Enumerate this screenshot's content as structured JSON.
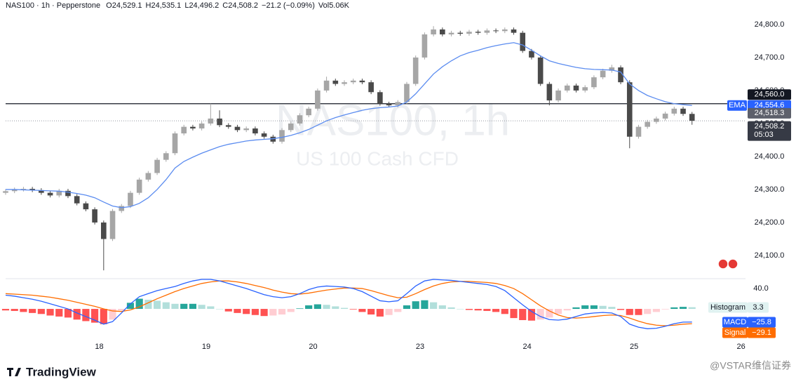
{
  "chart_data": {
    "type": "candlestick",
    "header": {
      "symbol": "NAS100 · 1h · Pepperstone",
      "fields": [
        {
          "label": "O",
          "value": "24,529.1"
        },
        {
          "label": "H",
          "value": "24,535.1"
        },
        {
          "label": "L",
          "value": "24,496.2"
        },
        {
          "label": "C",
          "value": "24,508.2"
        },
        {
          "label": "",
          "value": "−21.2 (−0.09%)"
        },
        {
          "label": "Vol",
          "value": "5.06K"
        }
      ]
    },
    "watermark": {
      "title": "NAS100, 1h",
      "subtitle": "US 100 Cash CFD"
    },
    "brand": "TradingView",
    "credit": "@VSTAR维信证券",
    "xlim": [
      0,
      166
    ],
    "xticks": [
      {
        "value": 21,
        "label": "18"
      },
      {
        "value": 45,
        "label": "19"
      },
      {
        "value": 69,
        "label": "20"
      },
      {
        "value": 93,
        "label": "23"
      },
      {
        "value": 117,
        "label": "24"
      },
      {
        "value": 141,
        "label": "25"
      },
      {
        "value": 165,
        "label": "26"
      }
    ],
    "ylim": [
      24034,
      24853
    ],
    "yticks": [
      {
        "value": 24800,
        "label": "24,800.0"
      },
      {
        "value": 24700,
        "label": "24,700.0"
      },
      {
        "value": 24600,
        "label": "24,600.0"
      },
      {
        "value": 24500,
        "label": "24,500.0"
      },
      {
        "value": 24400,
        "label": "24,400.0"
      },
      {
        "value": 24300,
        "label": "24,300.0"
      },
      {
        "value": 24200,
        "label": "24,200.0"
      },
      {
        "value": 24100,
        "label": "24,100.0"
      }
    ],
    "up_color": "#a6a6a6",
    "down_color": "#4a4a4a",
    "x": [
      0,
      2,
      4,
      6,
      8,
      10,
      12,
      14,
      16,
      18,
      20,
      22,
      24,
      26,
      28,
      30,
      32,
      34,
      36,
      38,
      40,
      42,
      44,
      46,
      48,
      50,
      52,
      54,
      56,
      58,
      60,
      62,
      64,
      66,
      68,
      70,
      72,
      74,
      76,
      78,
      80,
      82,
      84,
      86,
      88,
      90,
      92,
      94,
      96,
      98,
      100,
      102,
      104,
      106,
      108,
      110,
      112,
      114,
      116,
      118,
      120,
      122,
      124,
      126,
      128,
      130,
      132,
      134,
      136,
      138,
      140,
      142,
      144,
      146,
      148,
      150,
      152,
      154
    ],
    "open": [
      24290,
      24295,
      24300,
      24302,
      24298,
      24290,
      24282,
      24296,
      24280,
      24258,
      24240,
      24200,
      24150,
      24235,
      24250,
      24290,
      24330,
      24350,
      24390,
      24410,
      24470,
      24490,
      24485,
      24500,
      24515,
      24495,
      24490,
      24480,
      24485,
      24470,
      24460,
      24445,
      24480,
      24500,
      24525,
      24545,
      24600,
      24630,
      24620,
      24625,
      24630,
      24625,
      24595,
      24560,
      24555,
      24565,
      24620,
      24700,
      24770,
      24785,
      24770,
      24775,
      24772,
      24778,
      24775,
      24782,
      24780,
      24785,
      24775,
      24720,
      24700,
      24620,
      24570,
      24600,
      24615,
      24600,
      24610,
      24640,
      24660,
      24670,
      24625,
      24460,
      24490,
      24505,
      24515,
      24530,
      24545,
      24529.1
    ],
    "high": [
      24301,
      24306,
      24308,
      24308,
      24304,
      24296,
      24302,
      24302,
      24286,
      24264,
      24246,
      24206,
      24241,
      24256,
      24296,
      24336,
      24356,
      24396,
      24416,
      24476,
      24496,
      24496,
      24506,
      24560,
      24540,
      24501,
      24496,
      24491,
      24491,
      24476,
      24466,
      24486,
      24506,
      24531,
      24551,
      24606,
      24642,
      24636,
      24631,
      24636,
      24636,
      24631,
      24601,
      24566,
      24571,
      24626,
      24706,
      24776,
      24795,
      24791,
      24781,
      24781,
      24784,
      24784,
      24788,
      24788,
      24791,
      24791,
      24781,
      24726,
      24706,
      24626,
      24606,
      24621,
      24621,
      24616,
      24646,
      24666,
      24678,
      24676,
      24631,
      24496,
      24511,
      24521,
      24536,
      24551,
      24551,
      24535.1
    ],
    "low": [
      24284,
      24289,
      24294,
      24292,
      24284,
      24276,
      24276,
      24274,
      24252,
      24234,
      24194,
      24055,
      24144,
      24229,
      24244,
      24284,
      24324,
      24344,
      24384,
      24404,
      24464,
      24479,
      24479,
      24494,
      24489,
      24484,
      24474,
      24474,
      24464,
      24454,
      24439,
      24439,
      24474,
      24494,
      24519,
      24539,
      24594,
      24614,
      24614,
      24619,
      24619,
      24589,
      24554,
      24549,
      24549,
      24559,
      24614,
      24694,
      24764,
      24764,
      24764,
      24766,
      24766,
      24769,
      24769,
      24774,
      24774,
      24769,
      24714,
      24694,
      24614,
      24555,
      24564,
      24594,
      24594,
      24594,
      24604,
      24634,
      24654,
      24619,
      24425,
      24454,
      24484,
      24499,
      24509,
      24524,
      24523,
      24496.2
    ],
    "close": [
      24295,
      24300,
      24302,
      24298,
      24290,
      24282,
      24296,
      24280,
      24258,
      24240,
      24200,
      24150,
      24235,
      24250,
      24290,
      24330,
      24350,
      24390,
      24410,
      24470,
      24490,
      24485,
      24500,
      24515,
      24495,
      24490,
      24480,
      24485,
      24470,
      24460,
      24445,
      24480,
      24500,
      24525,
      24545,
      24600,
      24630,
      24620,
      24625,
      24630,
      24625,
      24595,
      24560,
      24555,
      24565,
      24620,
      24700,
      24770,
      24785,
      24770,
      24775,
      24772,
      24778,
      24775,
      24782,
      24780,
      24785,
      24775,
      24720,
      24700,
      24620,
      24570,
      24600,
      24615,
      24600,
      24610,
      24640,
      24660,
      24670,
      24625,
      24460,
      24490,
      24505,
      24515,
      24530,
      24545,
      24529.1,
      24508.2
    ],
    "ema": {
      "name": "EMA",
      "color": "#5b8cf0",
      "label_color": "#2962ff",
      "value_label": "24,554.6",
      "values": [
        24300,
        24300,
        24299,
        24298,
        24297,
        24296,
        24295,
        24292,
        24288,
        24283,
        24275,
        24262,
        24250,
        24245,
        24248,
        24258,
        24275,
        24300,
        24330,
        24365,
        24385,
        24398,
        24410,
        24420,
        24430,
        24437,
        24442,
        24447,
        24450,
        24452,
        24454,
        24458,
        24464,
        24472,
        24482,
        24495,
        24508,
        24518,
        24526,
        24533,
        24540,
        24545,
        24548,
        24550,
        24553,
        24565,
        24590,
        24620,
        24650,
        24672,
        24690,
        24705,
        24715,
        24722,
        24730,
        24736,
        24741,
        24745,
        24738,
        24722,
        24705,
        24690,
        24682,
        24676,
        24670,
        24666,
        24664,
        24663,
        24662,
        24656,
        24620,
        24600,
        24585,
        24575,
        24566,
        24560,
        24557,
        24554.6
      ]
    },
    "hline": {
      "value": 24560,
      "label": "24,560.0",
      "color": "#131722"
    },
    "bid": {
      "value": 24518.3,
      "label": "24,518.3",
      "color": "#5d606b"
    },
    "last": {
      "value": 24508.2,
      "label": "24,508.2",
      "countdown": "05:03",
      "color": "#363a45"
    },
    "macd": {
      "ylim": [
        -62,
        58
      ],
      "yticks": [
        {
          "value": 40,
          "label": "40.0"
        }
      ],
      "histogram": {
        "name": "Histogram",
        "value_label": "3.3",
        "colors": [
          "#26a69a",
          "#b2dfdb",
          "#ff5252",
          "#ffcdd2"
        ],
        "values": [
          -3,
          -4,
          -6,
          -8,
          -10,
          -13,
          -15,
          -17,
          -21,
          -24,
          -27,
          -30,
          -21,
          -3,
          12,
          20,
          18,
          16,
          13,
          10,
          10,
          10,
          8,
          5,
          0,
          -5,
          -8,
          -10,
          -12,
          -14,
          -13,
          -11,
          -6,
          1,
          7,
          9,
          8,
          5,
          2,
          -1,
          -6,
          -11,
          -15,
          -12,
          -6,
          7,
          15,
          17,
          13,
          7,
          3,
          0,
          -2,
          -3,
          -4,
          -6,
          -10,
          -18,
          -22,
          -23,
          -21,
          -17,
          -10,
          -3,
          3,
          7,
          7,
          6,
          4,
          -2,
          -12,
          -12,
          -10,
          -6,
          -1,
          3,
          4,
          3.3
        ]
      },
      "macd_line": {
        "name": "MACD",
        "color": "#2962ff",
        "value_label": "−25.8",
        "values": [
          27,
          25,
          22,
          19,
          15,
          10,
          5,
          0,
          -8,
          -15,
          -22,
          -30,
          -25,
          -8,
          10,
          24,
          30,
          36,
          40,
          44,
          50,
          55,
          58,
          58,
          55,
          50,
          45,
          40,
          34,
          28,
          24,
          22,
          24,
          30,
          38,
          43,
          45,
          44,
          43,
          40,
          34,
          25,
          16,
          14,
          16,
          30,
          45,
          55,
          58,
          57,
          56,
          54,
          52,
          50,
          48,
          44,
          36,
          22,
          8,
          -5,
          -15,
          -21,
          -22,
          -20,
          -15,
          -10,
          -8,
          -7,
          -8,
          -15,
          -30,
          -36,
          -39,
          -38,
          -34,
          -29,
          -26,
          -25.8
        ]
      },
      "signal": {
        "name": "Signal",
        "color": "#ff6d00",
        "value_label": "−29.1",
        "values": [
          30,
          29,
          28,
          27,
          25,
          23,
          20,
          17,
          13,
          9,
          5,
          0,
          -4,
          -5,
          -2,
          4,
          12,
          20,
          27,
          34,
          40,
          45,
          50,
          53,
          55,
          55,
          53,
          50,
          46,
          42,
          37,
          33,
          30,
          29,
          31,
          34,
          37,
          39,
          41,
          41,
          40,
          36,
          31,
          26,
          22,
          23,
          30,
          38,
          45,
          50,
          53,
          54,
          54,
          53,
          52,
          50,
          46,
          40,
          30,
          18,
          6,
          -4,
          -12,
          -17,
          -18,
          -17,
          -15,
          -13,
          -12,
          -13,
          -18,
          -24,
          -29,
          -32,
          -33,
          -32,
          -30,
          -29.1
        ]
      }
    }
  }
}
